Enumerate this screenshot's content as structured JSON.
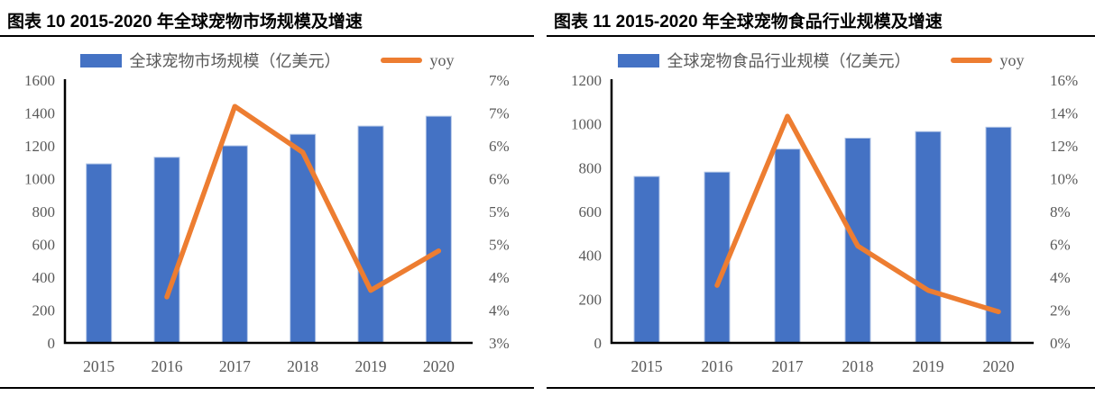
{
  "page": {
    "background": "#ffffff",
    "rule_color": "#000000",
    "axis_line_color": "#000000"
  },
  "panels": [
    {
      "title": "图表 10 2015-2020 年全球宠物市场规模及增速",
      "legend": [
        {
          "type": "bar",
          "label": "全球宠物市场规模（亿美元）"
        },
        {
          "type": "line",
          "label": "yoy"
        }
      ],
      "chart_data": {
        "type": "bar+line",
        "title": "图表 10 2015-2020 年全球宠物市场规模及增速",
        "categories": [
          "2015",
          "2016",
          "2017",
          "2018",
          "2019",
          "2020"
        ],
        "series": [
          {
            "name": "全球宠物市场规模（亿美元）",
            "type": "bar",
            "axis": "left",
            "color": "#4472C4",
            "border_color": "#B4C7E7",
            "values": [
              1090,
              1130,
              1200,
              1270,
              1320,
              1380
            ]
          },
          {
            "name": "yoy",
            "type": "line",
            "axis": "right",
            "color": "#ED7D31",
            "values": [
              null,
              3.7,
              6.6,
              5.9,
              3.8,
              4.4
            ]
          }
        ],
        "left_axis": {
          "min": 0,
          "max": 1600,
          "tick_labels_top_to_bottom": [
            "1600",
            "1400",
            "1200",
            "1000",
            "800",
            "600",
            "400",
            "200",
            "0"
          ]
        },
        "right_axis": {
          "min": 3,
          "max": 7,
          "tick_labels_top_to_bottom": [
            "7%",
            "7%",
            "6%",
            "6%",
            "5%",
            "5%",
            "4%",
            "4%",
            "3%"
          ]
        },
        "axis_label_color": "#595959",
        "grid": false,
        "legend_position": "top"
      }
    },
    {
      "title": "图表 11 2015-2020 年全球宠物食品行业规模及增速",
      "legend": [
        {
          "type": "bar",
          "label": "全球宠物食品行业规模（亿美元）"
        },
        {
          "type": "line",
          "label": "yoy"
        }
      ],
      "chart_data": {
        "type": "bar+line",
        "title": "图表 11 2015-2020 年全球宠物食品行业规模及增速",
        "categories": [
          "2015",
          "2016",
          "2017",
          "2018",
          "2019",
          "2020"
        ],
        "series": [
          {
            "name": "全球宠物食品行业规模（亿美元）",
            "type": "bar",
            "axis": "left",
            "color": "#4472C4",
            "border_color": "#B4C7E7",
            "values": [
              760,
              780,
              885,
              935,
              965,
              985
            ]
          },
          {
            "name": "yoy",
            "type": "line",
            "axis": "right",
            "color": "#ED7D31",
            "values": [
              null,
              3.5,
              13.8,
              5.9,
              3.2,
              1.9
            ]
          }
        ],
        "left_axis": {
          "min": 0,
          "max": 1200,
          "tick_labels_top_to_bottom": [
            "1200",
            "1000",
            "800",
            "600",
            "400",
            "200",
            "0"
          ]
        },
        "right_axis": {
          "min": 0,
          "max": 16,
          "tick_labels_top_to_bottom": [
            "16%",
            "14%",
            "12%",
            "10%",
            "8%",
            "6%",
            "4%",
            "2%",
            "0%"
          ]
        },
        "axis_label_color": "#595959",
        "grid": false,
        "legend_position": "top"
      }
    }
  ]
}
